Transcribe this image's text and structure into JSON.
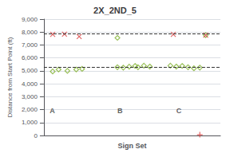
{
  "chart_data": {
    "type": "scatter",
    "title": "2X_2ND_5",
    "xlabel": "Sign Set",
    "ylabel": "Distance from Start Point (ft)",
    "xlim": [
      0,
      30
    ],
    "ylim": [
      0,
      9000
    ],
    "yticks": [
      0,
      1000,
      2000,
      3000,
      4000,
      5000,
      6000,
      7000,
      8000,
      9000
    ],
    "grid": true,
    "tick_labels": "y",
    "series": [
      {
        "color": "#80b030",
        "marker": "open_diamond",
        "x": [
          1.5,
          2.5,
          4.0,
          5.5,
          6.5,
          12.5,
          12.5,
          13.5,
          14.5,
          15.5,
          16.0,
          17.0,
          18.0,
          21.5,
          22.5,
          23.5,
          24.5,
          25.5,
          26.5,
          27.5
        ],
        "values": [
          4950,
          5100,
          5000,
          5100,
          5150,
          7550,
          5280,
          5250,
          5320,
          5380,
          5280,
          5400,
          5330,
          5400,
          5330,
          5380,
          5280,
          5200,
          5250,
          7760
        ]
      },
      {
        "color": "#d94040",
        "marker": "x",
        "x": [
          1.5,
          3.5,
          6.0,
          22.0,
          27.5
        ],
        "values": [
          7820,
          7840,
          7650,
          7820,
          7760
        ]
      },
      {
        "color": "#d94040",
        "marker": "plus",
        "x": [
          26.5
        ],
        "values": [
          60
        ]
      }
    ],
    "hlines": [
      {
        "y": 7900,
        "color": "#333333",
        "line_style": "dashed"
      },
      {
        "y": 5300,
        "color": "#333333",
        "line_style": "dashed"
      }
    ],
    "annotations": [
      {
        "text": "A",
        "x": 1.0,
        "y": 2200
      },
      {
        "text": "B",
        "x": 12.5,
        "y": 2200
      },
      {
        "text": "C",
        "x": 22.5,
        "y": 2200
      }
    ]
  }
}
